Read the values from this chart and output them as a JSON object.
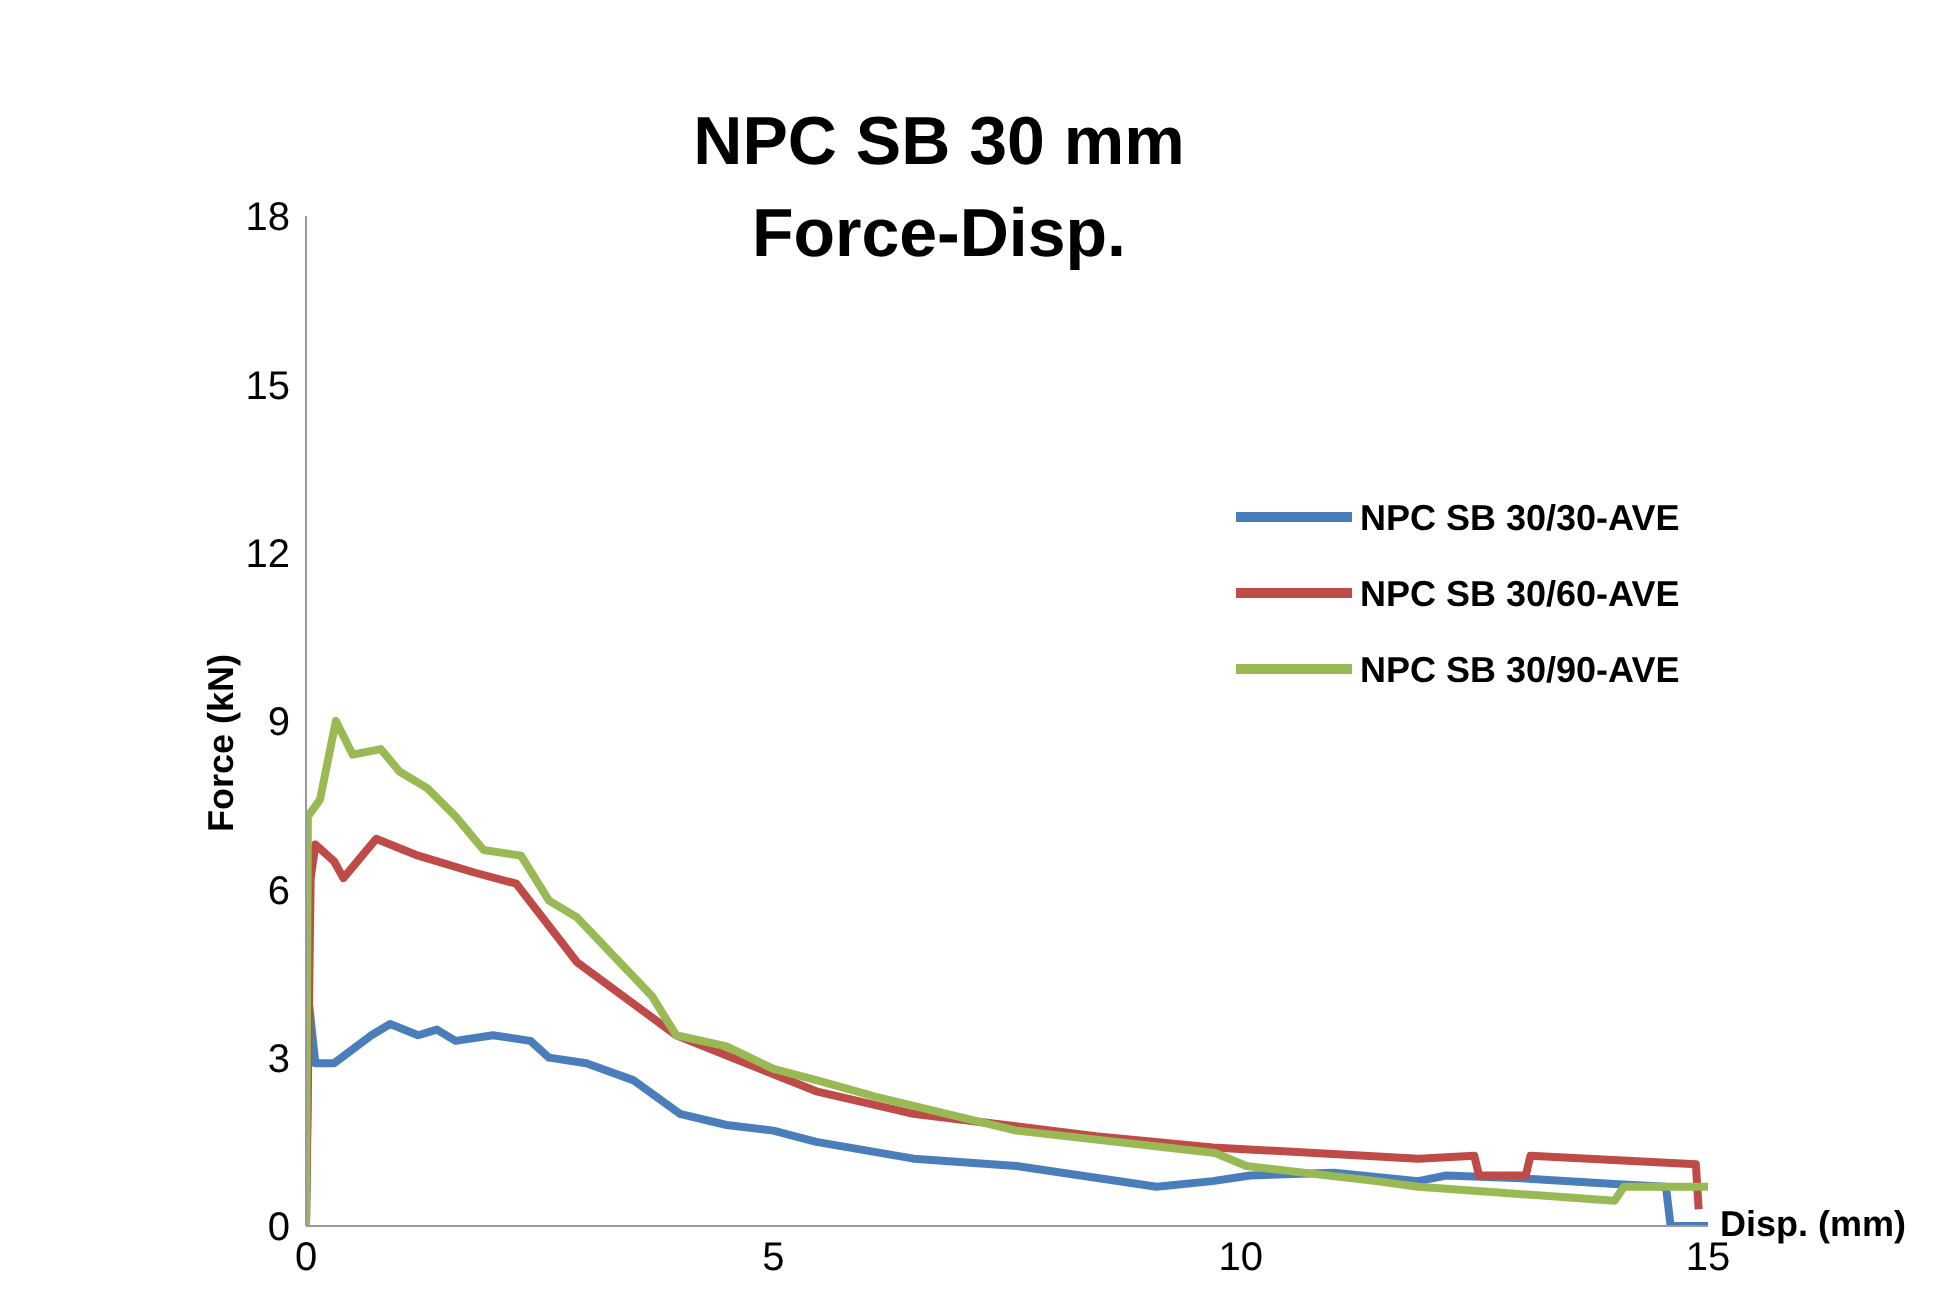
{
  "chart_data": {
    "type": "line",
    "title": "NPC SB 30 mm\nForce-Disp.",
    "xlabel": "Disp. (mm)",
    "ylabel": "Force (kN)",
    "xlim": [
      0,
      15
    ],
    "xticks": [
      0,
      5,
      10,
      15
    ],
    "ylim": [
      0,
      18
    ],
    "yticks": [
      0,
      3,
      6,
      9,
      12,
      15,
      18
    ],
    "grid": false,
    "legend": "right",
    "marker": "none",
    "line_style": "solid",
    "series": [
      {
        "name": "NPC SB 30/30-AVE",
        "color": "#4a7ebb",
        "x": [
          0,
          0.03,
          0.1,
          0.3,
          0.7,
          0.9,
          1.2,
          1.4,
          1.6,
          2.0,
          2.4,
          2.6,
          3.0,
          3.5,
          4.0,
          4.5,
          5.0,
          5.46,
          6.5,
          7.6,
          9.1,
          9.7,
          10.1,
          11.0,
          11.9,
          12.2,
          13.0,
          14.0,
          14.55,
          14.6,
          15
        ],
        "values": [
          0,
          4.0,
          2.9,
          2.9,
          3.4,
          3.6,
          3.4,
          3.5,
          3.3,
          3.4,
          3.3,
          3.0,
          2.9,
          2.6,
          2.0,
          1.8,
          1.7,
          1.5,
          1.2,
          1.07,
          0.7,
          0.8,
          0.9,
          0.95,
          0.8,
          0.9,
          0.85,
          0.75,
          0.7,
          0,
          0
        ]
      },
      {
        "name": "NPC SB 30/60-AVE",
        "color": "#be4b48",
        "x": [
          0,
          0.05,
          0.1,
          0.3,
          0.4,
          0.75,
          1.2,
          1.8,
          2.25,
          2.9,
          3.96,
          5.46,
          6.5,
          8.45,
          9.7,
          11.9,
          12.5,
          12.55,
          13.05,
          13.1,
          14.87,
          14.9
        ],
        "values": [
          0,
          6.2,
          6.8,
          6.5,
          6.2,
          6.9,
          6.6,
          6.3,
          6.1,
          4.7,
          3.4,
          2.4,
          2.0,
          1.6,
          1.4,
          1.2,
          1.25,
          0.9,
          0.9,
          1.25,
          1.1,
          0.3
        ]
      },
      {
        "name": "NPC SB 30/90-AVE",
        "color": "#98b954",
        "x": [
          0,
          0.02,
          0.15,
          0.32,
          0.5,
          0.8,
          1.0,
          1.3,
          1.6,
          1.9,
          2.3,
          2.6,
          2.9,
          3.3,
          3.7,
          3.96,
          4.5,
          5.0,
          5.46,
          6.1,
          7.6,
          9.73,
          10.06,
          11.45,
          11.9,
          14.0,
          14.1,
          15
        ],
        "values": [
          0,
          7.3,
          7.6,
          9.0,
          8.4,
          8.5,
          8.1,
          7.8,
          7.3,
          6.7,
          6.6,
          5.8,
          5.5,
          4.8,
          4.1,
          3.4,
          3.2,
          2.8,
          2.6,
          2.3,
          1.7,
          1.3,
          1.07,
          0.8,
          0.7,
          0.45,
          0.7,
          0.7
        ]
      }
    ]
  }
}
